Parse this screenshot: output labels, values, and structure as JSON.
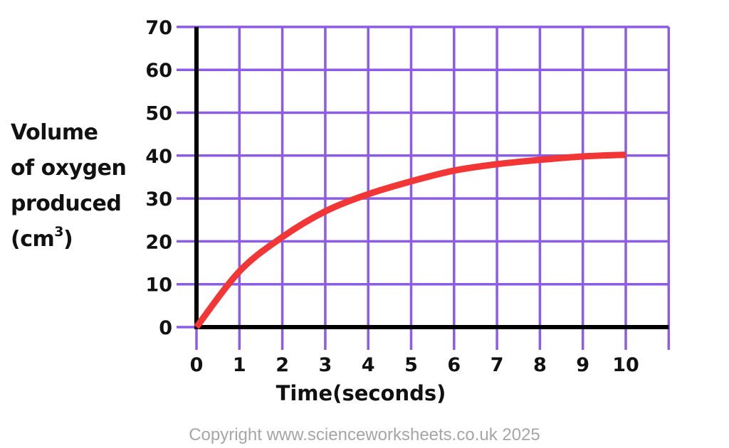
{
  "chart_data": {
    "type": "line",
    "title": "",
    "xlabel": "Time(seconds)",
    "ylabel_lines": [
      "Volume",
      "of oxygen",
      "produced",
      "(cm"
    ],
    "ylabel_superscript": "3",
    "ylabel_suffix": ")",
    "xlim": [
      0,
      11
    ],
    "ylim": [
      0,
      70
    ],
    "x_ticks": [
      0,
      1,
      2,
      3,
      4,
      5,
      6,
      7,
      8,
      9,
      10
    ],
    "y_ticks": [
      0,
      10,
      20,
      30,
      40,
      50,
      60,
      70
    ],
    "grid": true,
    "series": [
      {
        "x": [
          0,
          1,
          2,
          3,
          4,
          5,
          6,
          7,
          8,
          9,
          10
        ],
        "y": [
          0,
          13,
          21,
          27,
          31,
          34,
          36.5,
          38,
          39,
          39.8,
          40.2
        ]
      }
    ],
    "colors": {
      "grid": "#8c5ce6",
      "axis": "#000000",
      "line": "#f23535"
    }
  },
  "footer": {
    "copyright": "Copyright www.scienceworksheets.co.uk 2025"
  }
}
